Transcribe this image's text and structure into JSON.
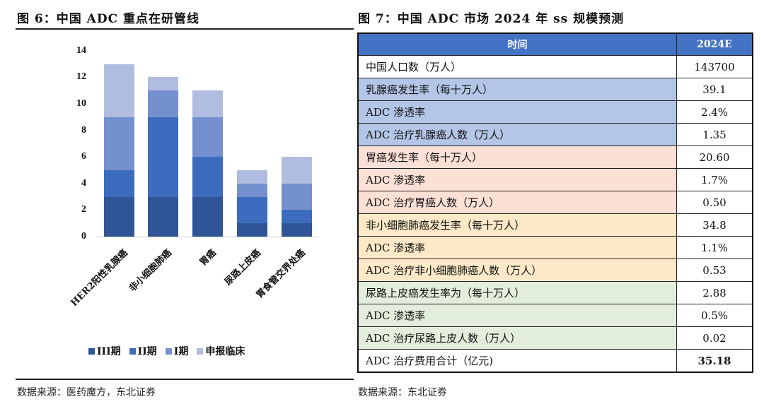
{
  "left": {
    "title": "图 6：中国 ADC 重点在研管线",
    "source": "数据来源：医药魔方，东北证券"
  },
  "right": {
    "title": "图 7：中国 ADC 市场 2024 年 ss 规模预测",
    "source": "数据来源：东北证券",
    "table": {
      "headers": [
        "时间",
        "2024E"
      ],
      "rows": [
        {
          "label": "中国人口数（万人）",
          "value": "143700",
          "bg": "#ffffff"
        },
        {
          "label": "乳腺癌发生率（每十万人）",
          "value": "39.1",
          "bg": "#b4c6e7"
        },
        {
          "label": "ADC 渗透率",
          "value": "2.4%",
          "bg": "#b4c6e7"
        },
        {
          "label": "ADC 治疗乳腺癌人数（万人）",
          "value": "1.35",
          "bg": "#b4c6e7"
        },
        {
          "label": "胃癌发生率（每十万人）",
          "value": "20.60",
          "bg": "#fbe0d5"
        },
        {
          "label": "ADC 渗透率",
          "value": "1.7%",
          "bg": "#fbe0d5"
        },
        {
          "label": "ADC 治疗胃癌人数（万人）",
          "value": "0.50",
          "bg": "#fbe0d5"
        },
        {
          "label": "非小细胞肺癌发生率（每十万人）",
          "value": "34.8",
          "bg": "#fde9c8"
        },
        {
          "label": "ADC 渗透率",
          "value": "1.1%",
          "bg": "#fde9c8"
        },
        {
          "label": "ADC 治疗非小细胞肺癌人数（万人）",
          "value": "0.53",
          "bg": "#fde9c8"
        },
        {
          "label": "尿路上皮癌发生率为（每十万人）",
          "value": "2.88",
          "bg": "#e2eedb"
        },
        {
          "label": "ADC 渗透率",
          "value": "0.5%",
          "bg": "#e2eedb"
        },
        {
          "label": "ADC 治疗尿路上皮人数（万人）",
          "value": "0.02",
          "bg": "#e2eedb"
        },
        {
          "label": "ADC 治疗费用合计（亿元)",
          "value": "35.18",
          "bg": "#ffffff",
          "bold": true
        }
      ]
    }
  },
  "chart_data": {
    "type": "bar",
    "stacked": true,
    "title": "图 6：中国 ADC 重点在研管线",
    "xlabel": "",
    "ylabel": "",
    "ylim": [
      0,
      14
    ],
    "yticks": [
      0,
      2,
      4,
      6,
      8,
      10,
      12,
      14
    ],
    "grid": false,
    "legend_position": "bottom",
    "categories": [
      "HER2阳性乳腺癌",
      "非小细胞肺癌",
      "胃癌",
      "尿路上皮癌",
      "胃食管交界处癌"
    ],
    "series": [
      {
        "name": "III期",
        "color": "#2f5597",
        "values": [
          3,
          3,
          3,
          1,
          1
        ]
      },
      {
        "name": "II期",
        "color": "#3d6bbd",
        "values": [
          2,
          6,
          3,
          2,
          1
        ]
      },
      {
        "name": "I期",
        "color": "#7590cf",
        "values": [
          4,
          2,
          3,
          1,
          2
        ]
      },
      {
        "name": "申报临床",
        "color": "#b0bde0",
        "values": [
          4,
          1,
          2,
          1,
          2
        ]
      }
    ]
  }
}
